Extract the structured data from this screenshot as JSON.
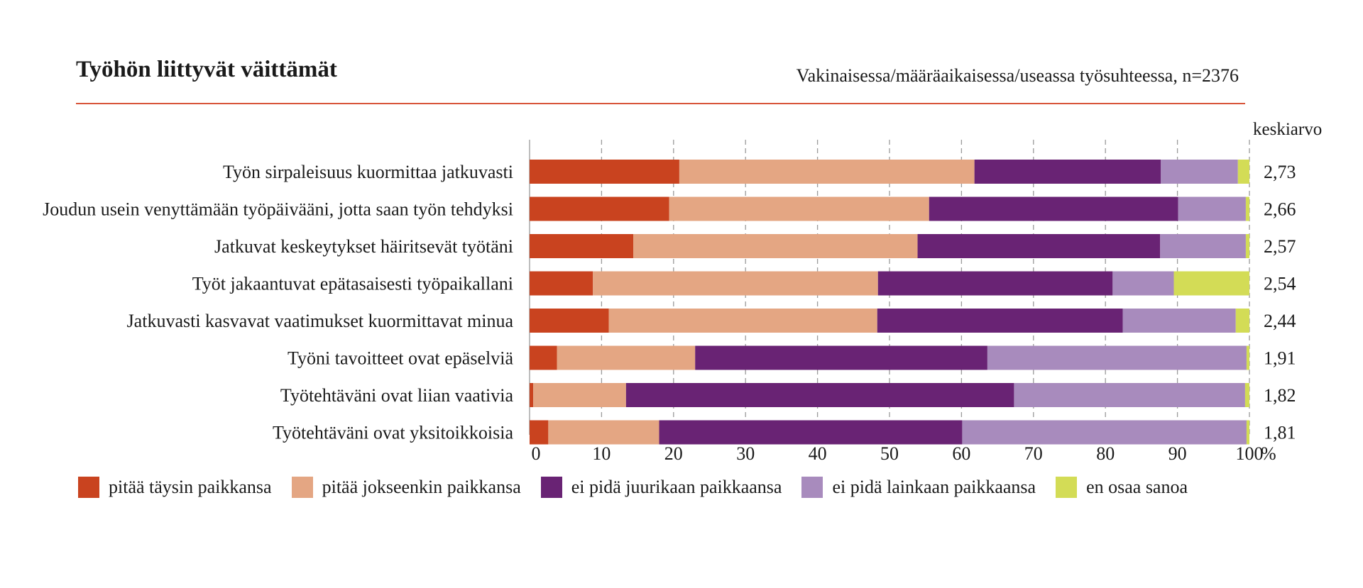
{
  "chart_data": {
    "type": "bar",
    "orientation": "horizontal",
    "stacked": true,
    "title": "Työhön liittyvät väittämät",
    "subtitle": "Vakinaisessa/määräaikaisessa/useassa työsuhteessa, n=2376",
    "mean_header": "keskiarvo",
    "categories": [
      "Työn sirpaleisuus kuormittaa jatkuvasti",
      "Joudun usein venyttämään työpäivääni, jotta saan työn tehdyksi",
      "Jatkuvat keskeytykset häiritsevät työtäni",
      "Työt jakaantuvat epätasaisesti työpaikallani",
      "Jatkuvasti kasvavat vaatimukset kuormittavat minua",
      "Työni tavoitteet ovat epäselviä",
      "Työtehtäväni ovat liian vaativia",
      "Työtehtäväni ovat yksitoikkoisia"
    ],
    "means": [
      "2,73",
      "2,66",
      "2,57",
      "2,54",
      "2,44",
      "1,91",
      "1,82",
      "1,81"
    ],
    "series": [
      {
        "name": "pitää täysin paikkansa",
        "color": "#c9431f",
        "values": [
          20.8,
          19.4,
          14.4,
          8.8,
          11.0,
          3.8,
          0.5,
          2.6
        ]
      },
      {
        "name": "pitää jokseenkin paikkansa",
        "color": "#e4a683",
        "values": [
          41.0,
          36.1,
          39.5,
          39.6,
          37.3,
          19.2,
          12.9,
          15.4
        ]
      },
      {
        "name": "ei pidä juurikaan paikkaansa",
        "color": "#692374",
        "values": [
          25.9,
          34.6,
          33.7,
          32.6,
          34.1,
          40.6,
          53.9,
          42.1
        ]
      },
      {
        "name": "ei pidä lainkaan paikkaansa",
        "color": "#a88bbd",
        "values": [
          10.7,
          9.4,
          11.9,
          8.5,
          15.7,
          36.0,
          32.1,
          39.5
        ]
      },
      {
        "name": "en osaa sanoa",
        "color": "#d3dc56",
        "values": [
          1.6,
          0.5,
          0.5,
          10.5,
          1.9,
          0.4,
          0.6,
          0.4
        ]
      }
    ],
    "x_ticks": [
      "0",
      "10",
      "20",
      "30",
      "40",
      "50",
      "60",
      "70",
      "80",
      "90",
      "100"
    ],
    "x_unit": "%",
    "xlim": [
      0,
      100
    ],
    "grid": "vertical dashed",
    "legend_position": "bottom"
  }
}
